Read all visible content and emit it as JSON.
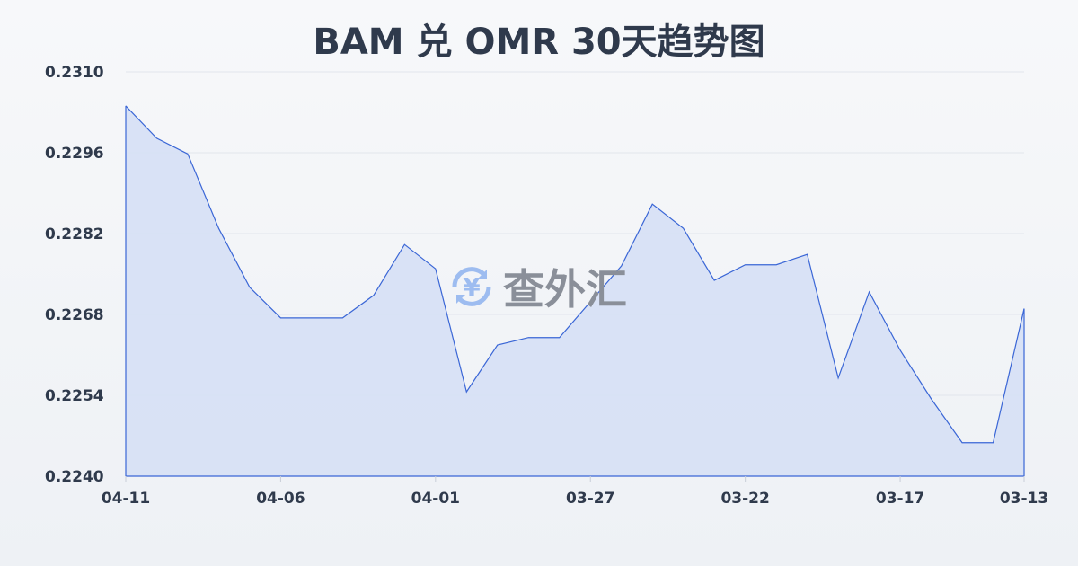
{
  "title": "BAM 兑 OMR 30天趋势图",
  "watermark": "查外汇",
  "chart_data": {
    "type": "area",
    "title": "BAM 兑 OMR 30天趋势图",
    "x": [
      "04-11",
      "04-10",
      "04-09",
      "04-08",
      "04-07",
      "04-06",
      "04-05",
      "04-04",
      "04-03",
      "04-02",
      "04-01",
      "03-31",
      "03-30",
      "03-29",
      "03-28",
      "03-27",
      "03-26",
      "03-25",
      "03-24",
      "03-23",
      "03-22",
      "03-21",
      "03-20",
      "03-19",
      "03-18",
      "03-17",
      "03-16",
      "03-15",
      "03-14",
      "03-13"
    ],
    "values": [
      0.23041,
      0.22985,
      0.22958,
      0.22829,
      0.22727,
      0.22674,
      0.22674,
      0.22674,
      0.22713,
      0.22801,
      0.22759,
      0.22546,
      0.22627,
      0.2264,
      0.2264,
      0.22702,
      0.22764,
      0.22871,
      0.22829,
      0.22739,
      0.22766,
      0.22766,
      0.22784,
      0.2257,
      0.22719,
      0.22618,
      0.22534,
      0.22458,
      0.22458,
      0.2269
    ],
    "x_tick_labels": [
      "04-11",
      "04-06",
      "04-01",
      "03-27",
      "03-22",
      "03-17",
      "03-13"
    ],
    "y_tick_labels": [
      "0.2310",
      "0.2296",
      "0.2282",
      "0.2268",
      "0.2254",
      "0.2240"
    ],
    "ylim": [
      0.224,
      0.231
    ],
    "grid": true,
    "colors": {
      "line": "#3a66d6",
      "fill": "#d6e0f5"
    }
  }
}
